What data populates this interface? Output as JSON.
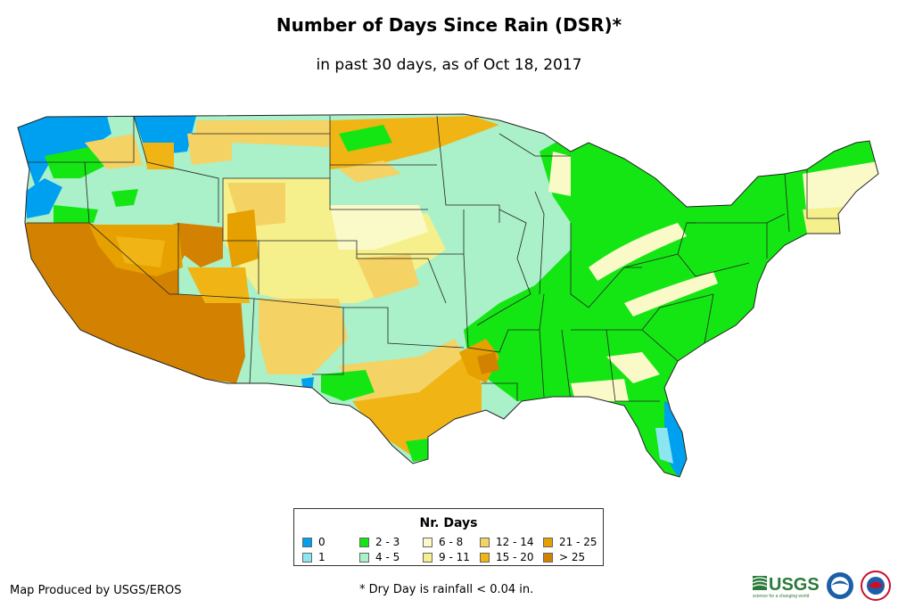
{
  "title": "Number of Days Since Rain (DSR)*",
  "subtitle": "in past 30 days, as of Oct 18, 2017",
  "legend": {
    "title": "Nr. Days",
    "items": [
      {
        "label": "0",
        "color": "#00a0f0"
      },
      {
        "label": "1",
        "color": "#8ce6f0"
      },
      {
        "label": "2 - 3",
        "color": "#14e614"
      },
      {
        "label": "4 - 5",
        "color": "#aaf0c8"
      },
      {
        "label": "6 - 8",
        "color": "#fafac8"
      },
      {
        "label": "9 - 11",
        "color": "#f5f08c"
      },
      {
        "label": "12 - 14",
        "color": "#f5d264"
      },
      {
        "label": "15 - 20",
        "color": "#f0b414"
      },
      {
        "label": "21 - 25",
        "color": "#e6a000"
      },
      {
        "label": "> 25",
        "color": "#d28200"
      }
    ]
  },
  "credit": "Map Produced by USGS/EROS",
  "footnote": "* Dry Day is rainfall < 0.04 in.",
  "logos": {
    "usgs": "USGS",
    "usgs_tagline": "science for a changing world"
  }
}
